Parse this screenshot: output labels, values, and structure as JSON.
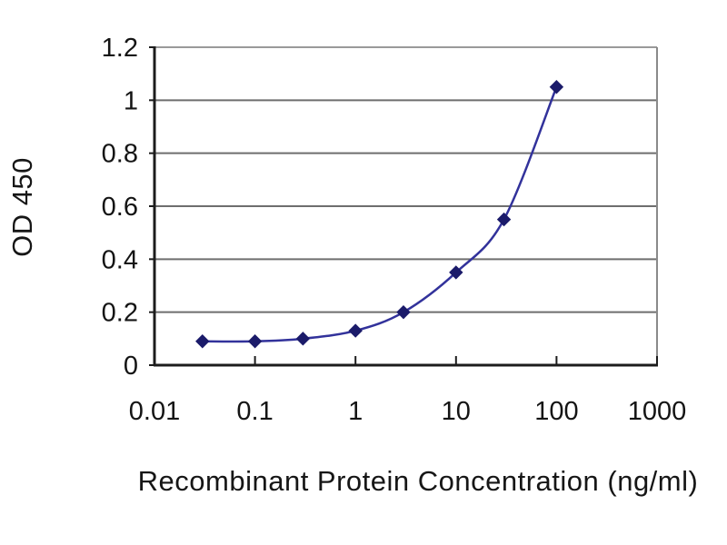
{
  "chart_data": {
    "type": "line",
    "title": "",
    "x": [
      0.03,
      0.1,
      0.3,
      1,
      3,
      10,
      30,
      100
    ],
    "y": [
      0.09,
      0.09,
      0.1,
      0.13,
      0.2,
      0.35,
      0.55,
      1.05
    ],
    "series": [
      {
        "name": "OD 450",
        "x": [
          0.03,
          0.1,
          0.3,
          1,
          3,
          10,
          30,
          100
        ],
        "values": [
          0.09,
          0.09,
          0.1,
          0.13,
          0.2,
          0.35,
          0.55,
          1.05
        ]
      }
    ],
    "xlabel": "Recombinant Protein Concentration (ng/ml)",
    "ylabel": "OD 450",
    "x_scale": "log",
    "xlim": [
      0.01,
      1000
    ],
    "ylim": [
      0,
      1.2
    ],
    "x_ticks": [
      0.01,
      0.1,
      1,
      10,
      100,
      1000
    ],
    "x_tick_labels": [
      "0.01",
      "0.1",
      "1",
      "10",
      "100",
      "1000"
    ],
    "y_ticks": [
      0,
      0.2,
      0.4,
      0.6,
      0.8,
      1,
      1.2
    ],
    "y_tick_labels": [
      "0",
      "0.2",
      "0.4",
      "0.6",
      "0.8",
      "1",
      "1.2"
    ],
    "grid": "horizontal",
    "legend": "none",
    "marker": "diamond",
    "line_smoothing": "smooth",
    "colors": {
      "line": "#32329b",
      "marker": "#1b1b6a",
      "gridline": "#6e6e6e",
      "top_border": "#9a9a9a",
      "right_border": "#8a8a8a",
      "axis": "#1c1c1c",
      "text": "#141414",
      "background": "#ffffff"
    }
  }
}
